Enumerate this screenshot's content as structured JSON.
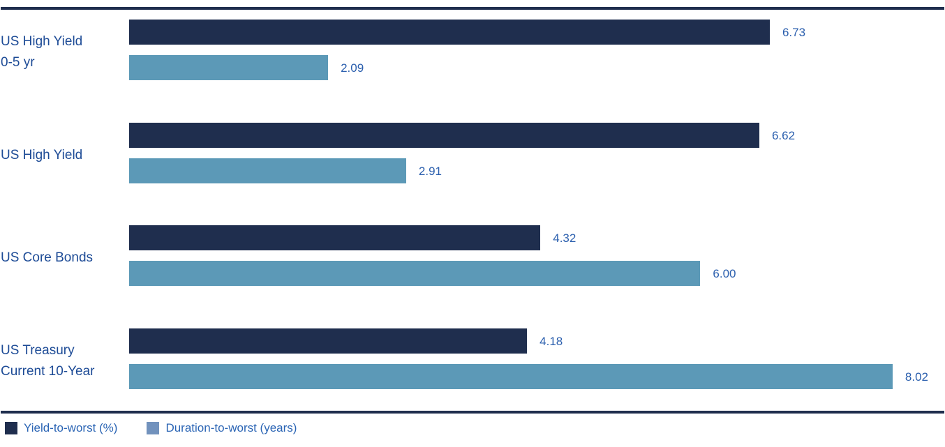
{
  "chart_data": {
    "type": "bar",
    "orientation": "horizontal",
    "title": "",
    "xlabel": "",
    "ylabel": "",
    "xlim": [
      0,
      8.57
    ],
    "grid": false,
    "legend_position": "bottom-left",
    "categories": [
      "US High Yield 0-5 yr",
      "US High Yield",
      "US Core Bonds",
      "US Treasury Current 10-Year"
    ],
    "category_lines": [
      [
        "US High Yield",
        "0-5 yr"
      ],
      [
        "US High Yield"
      ],
      [
        "US Core Bonds"
      ],
      [
        "US Treasury",
        "Current 10-Year"
      ]
    ],
    "series": [
      {
        "name": "Yield-to-worst (%)",
        "color": "#1f2e4e",
        "values": [
          6.73,
          6.62,
          4.32,
          4.18
        ]
      },
      {
        "name": "Duration-to-worst (years)",
        "color": "#5c99b7",
        "values": [
          2.09,
          2.91,
          6.0,
          8.02
        ]
      }
    ],
    "value_labels": [
      [
        "6.73",
        "2.09"
      ],
      [
        "6.62",
        "2.91"
      ],
      [
        "4.32",
        "6.00"
      ],
      [
        "4.18",
        "8.02"
      ]
    ],
    "legend": [
      {
        "label": "Yield-to-worst (%)",
        "swatch_color": "#1f2e4e"
      },
      {
        "label": "Duration-to-worst (years)",
        "swatch_color": "#7292bd"
      }
    ]
  },
  "colors": {
    "rule": "#1f2e4e",
    "category_text": "#1d4b96",
    "value_text": "#2b5fae",
    "legend_text": "#2a64b4",
    "background": "#ffffff"
  }
}
